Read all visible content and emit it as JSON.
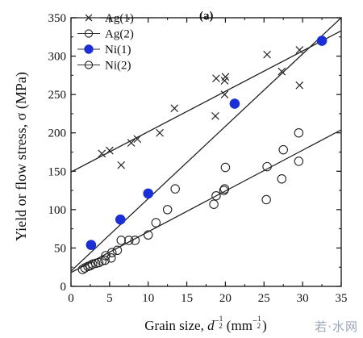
{
  "chart_data": {
    "type": "scatter",
    "panel_label": "(a)",
    "xlabel": {
      "prefix": "Grain size, ",
      "symbol": "d",
      "exponent_sign": "−",
      "exponent_num": "1",
      "exponent_den": "2",
      "unit": "mm",
      "unit_exponent_sign": "−",
      "unit_exponent_num": "1",
      "unit_exponent_den": "2"
    },
    "ylabel": "Yield or flow stress, σ (MPa)",
    "xlim": [
      0,
      35
    ],
    "ylim": [
      0,
      350
    ],
    "xticks": [
      "0",
      "5",
      "10",
      "15",
      "20",
      "25",
      "30",
      "35"
    ],
    "yticks": [
      "0",
      "50",
      "100",
      "150",
      "200",
      "250",
      "300",
      "350"
    ],
    "legend_position": "top-left",
    "series": [
      {
        "name": "Ag(1)",
        "marker": "cross",
        "color": "#222222",
        "points": [
          [
            4.0,
            173
          ],
          [
            5.0,
            177
          ],
          [
            6.5,
            158
          ],
          [
            7.8,
            187
          ],
          [
            8.6,
            192
          ],
          [
            11.5,
            200
          ],
          [
            13.4,
            232
          ],
          [
            18.7,
            222
          ],
          [
            18.8,
            271
          ],
          [
            19.9,
            268
          ],
          [
            19.9,
            250
          ],
          [
            20.0,
            273
          ],
          [
            25.4,
            302
          ],
          [
            27.3,
            280
          ],
          [
            29.6,
            308
          ],
          [
            29.6,
            262
          ]
        ]
      },
      {
        "name": "Ag(2)",
        "marker": "open-circle",
        "color": "#222222",
        "points": [
          [
            2.5,
            27
          ],
          [
            3.2,
            30
          ],
          [
            4.0,
            33
          ],
          [
            4.5,
            40
          ],
          [
            5.3,
            44
          ],
          [
            6.5,
            60
          ],
          [
            7.5,
            60
          ],
          [
            8.3,
            60
          ],
          [
            10.0,
            67
          ],
          [
            11.0,
            83
          ],
          [
            12.5,
            100
          ],
          [
            13.5,
            127
          ],
          [
            18.5,
            107
          ],
          [
            18.8,
            118
          ],
          [
            19.8,
            125
          ],
          [
            19.9,
            127
          ],
          [
            20.0,
            155
          ],
          [
            25.3,
            113
          ],
          [
            25.4,
            156
          ],
          [
            27.3,
            140
          ],
          [
            27.5,
            178
          ],
          [
            29.5,
            163
          ],
          [
            29.5,
            200
          ]
        ]
      },
      {
        "name": "Ni(1)",
        "marker": "filled-circle",
        "color": "#1a2fd6",
        "points": [
          [
            2.6,
            54
          ],
          [
            6.4,
            87
          ],
          [
            10.0,
            121
          ],
          [
            21.2,
            238
          ],
          [
            32.5,
            320
          ]
        ]
      },
      {
        "name": "Ni(2)",
        "marker": "open-circle",
        "color": "#222222",
        "points": [
          [
            1.5,
            22
          ],
          [
            1.8,
            24
          ],
          [
            2.2,
            26
          ],
          [
            2.8,
            29
          ],
          [
            3.6,
            31
          ],
          [
            4.4,
            34
          ],
          [
            5.2,
            37
          ],
          [
            6.0,
            47
          ]
        ]
      }
    ],
    "fit_lines": [
      {
        "series": "Ag(1)",
        "from": [
          0,
          149
        ],
        "to": [
          35,
          333
        ]
      },
      {
        "series": "Ni(1)",
        "from": [
          0,
          20
        ],
        "to": [
          35,
          350
        ]
      },
      {
        "series": "Ag(2)+Ni(2)",
        "from": [
          0,
          18
        ],
        "to": [
          35,
          204
        ]
      }
    ]
  },
  "watermark": "若·水网"
}
